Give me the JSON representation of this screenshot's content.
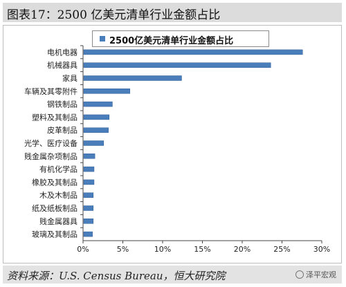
{
  "title": "图表17：2500 亿美元清单行业金额占比",
  "source": "资料来源：U.S. Census Bureau，恒大研究院",
  "watermark": "泽平宏观",
  "colors": {
    "bar": "#4a7ebb",
    "bar_edge": "#2e5e97"
  },
  "chart_data": {
    "type": "bar",
    "orientation": "horizontal",
    "legend": "2500亿美元清单行业金额占比",
    "legend_position": "top",
    "categories": [
      "电机电器",
      "机械器具",
      "家具",
      "车辆及其零附件",
      "钢铁制品",
      "塑料及其制品",
      "皮革制品",
      "光学、医疗设备",
      "贱金属杂项制品",
      "有机化学品",
      "橡胶及其制品",
      "木及木制品",
      "纸及纸板制品",
      "贱金属器具",
      "玻璃及其制品"
    ],
    "values": [
      0.275,
      0.235,
      0.123,
      0.058,
      0.036,
      0.032,
      0.031,
      0.025,
      0.014,
      0.013,
      0.013,
      0.012,
      0.012,
      0.012,
      0.011
    ],
    "xlim": [
      0,
      0.3
    ],
    "xticks": [
      0,
      0.05,
      0.1,
      0.15,
      0.2,
      0.25,
      0.3
    ],
    "xtick_labels": [
      "0%",
      "5%",
      "10%",
      "15%",
      "20%",
      "25%",
      "30%"
    ],
    "grid": false
  }
}
